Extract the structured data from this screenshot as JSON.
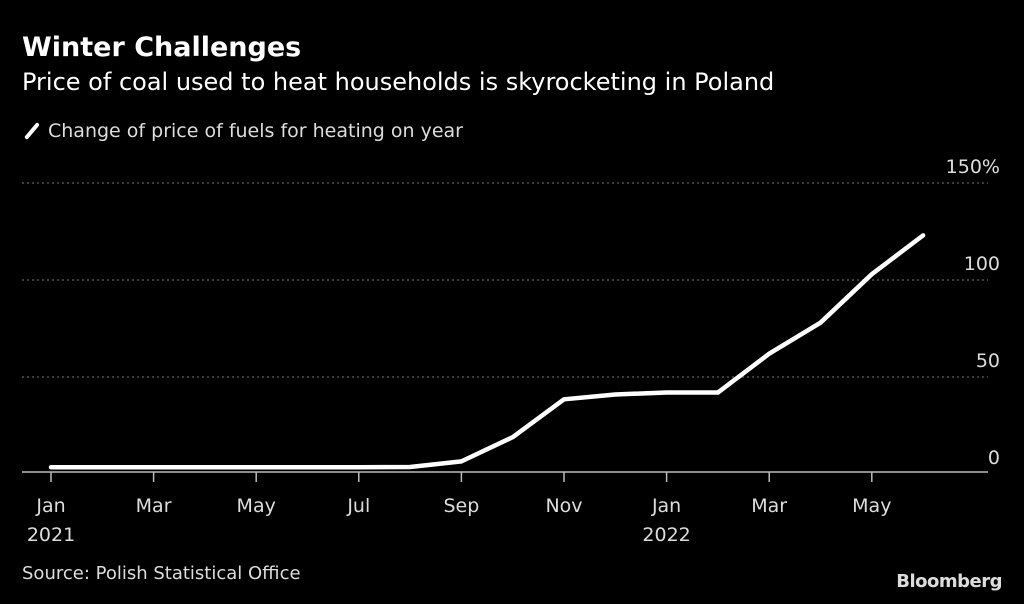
{
  "header": {
    "title": "Winter Challenges",
    "subtitle": "Price of coal used to heat households is skyrocketing in Poland"
  },
  "footer": {
    "source": "Source: Polish Statistical Office",
    "logo": "Bloomberg"
  },
  "chart_data": {
    "type": "line",
    "title": "Winter Challenges",
    "subtitle": "Price of coal used to heat households is skyrocketing in Poland",
    "x": [
      "2021-01",
      "2021-02",
      "2021-03",
      "2021-04",
      "2021-05",
      "2021-06",
      "2021-07",
      "2021-08",
      "2021-09",
      "2021-10",
      "2021-11",
      "2021-12",
      "2022-01",
      "2022-02",
      "2022-03",
      "2022-04",
      "2022-05",
      "2022-06"
    ],
    "series": [
      {
        "name": "Change of price of fuels for heating on year",
        "color": "#ffffff",
        "values": [
          3.5,
          3.5,
          3.5,
          3.5,
          3.5,
          3.5,
          3.5,
          3.6,
          6.5,
          19,
          38.5,
          41,
          42,
          42,
          62,
          78,
          103,
          123
        ]
      }
    ],
    "ylim": [
      0,
      150
    ],
    "yticks": [
      {
        "value": 0,
        "label": "0"
      },
      {
        "value": 50,
        "label": "50"
      },
      {
        "value": 100,
        "label": "100"
      },
      {
        "value": 150,
        "label": "150%"
      }
    ],
    "xticks": [
      {
        "month": 0,
        "label": "Jan",
        "year": "2021"
      },
      {
        "month": 2,
        "label": "Mar",
        "year": ""
      },
      {
        "month": 4,
        "label": "May",
        "year": ""
      },
      {
        "month": 6,
        "label": "Jul",
        "year": ""
      },
      {
        "month": 8,
        "label": "Sep",
        "year": ""
      },
      {
        "month": 10,
        "label": "Nov",
        "year": ""
      },
      {
        "month": 12,
        "label": "Jan",
        "year": "2022"
      },
      {
        "month": 14,
        "label": "Mar",
        "year": ""
      },
      {
        "month": 16,
        "label": "May",
        "year": ""
      }
    ],
    "grid": true,
    "legend": "top-left",
    "background": "#000000"
  }
}
